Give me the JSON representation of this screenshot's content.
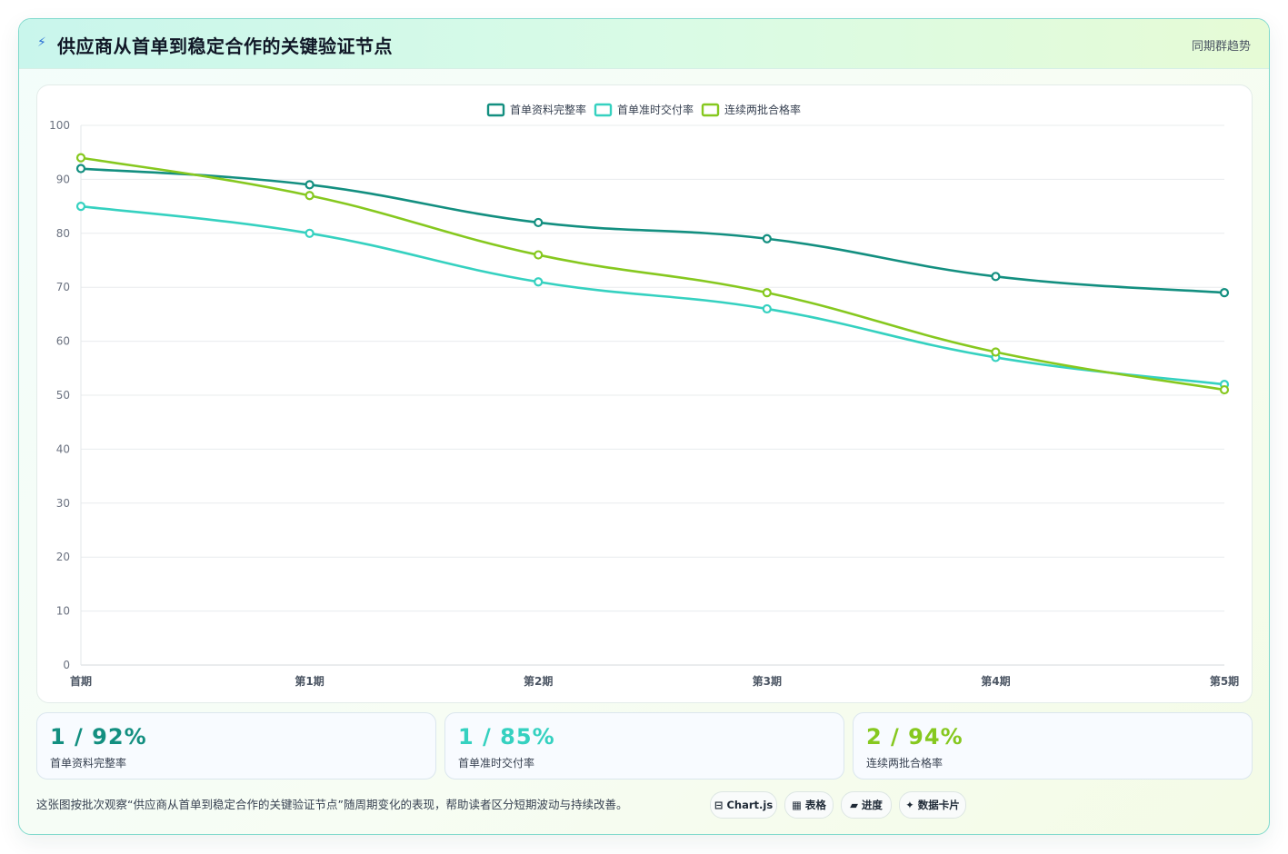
{
  "header": {
    "icon": "lightning-icon",
    "title": "供应商从首单到稳定合作的关键验证节点",
    "tag": "同期群趋势"
  },
  "chart_data": {
    "type": "line",
    "categories": [
      "首期",
      "第1期",
      "第2期",
      "第3期",
      "第4期",
      "第5期"
    ],
    "ylim": [
      0,
      100
    ],
    "yticks": [
      0,
      10,
      20,
      30,
      40,
      50,
      60,
      70,
      80,
      90,
      100
    ],
    "grid": true,
    "legend_position": "top-center",
    "series": [
      {
        "name": "首单资料完整率",
        "color": "#138f80",
        "values": [
          92,
          89,
          82,
          79,
          72,
          69
        ]
      },
      {
        "name": "首单准时交付率",
        "color": "#35d1c0",
        "values": [
          85,
          80,
          71,
          66,
          57,
          52
        ]
      },
      {
        "name": "连续两批合格率",
        "color": "#86c81f",
        "values": [
          94,
          87,
          76,
          69,
          58,
          51
        ]
      }
    ]
  },
  "stats": [
    {
      "value": "1 / 92%",
      "label": "首单资料完整率",
      "color": "#138f80"
    },
    {
      "value": "1 / 85%",
      "label": "首单准时交付率",
      "color": "#35d1c0"
    },
    {
      "value": "2 / 94%",
      "label": "连续两批合格率",
      "color": "#86c81f"
    }
  ],
  "footer": {
    "note": "这张图按批次观察“供应商从首单到稳定合作的关键验证节点”随周期变化的表现，帮助读者区分短期波动与持续改善。",
    "chips": [
      "⊟ Chart.js",
      "▦ 表格",
      "▰ 进度",
      "✦ 数据卡片"
    ]
  }
}
